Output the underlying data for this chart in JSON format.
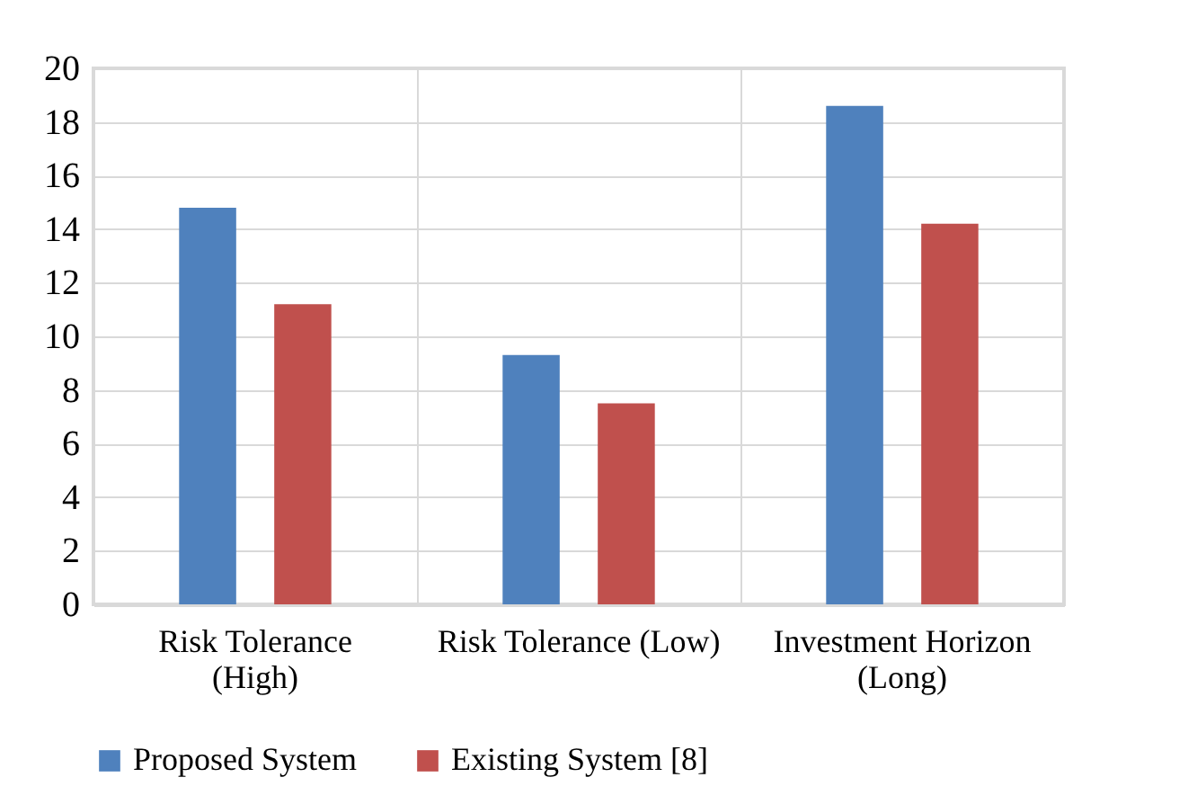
{
  "chart_data": {
    "type": "bar",
    "categories": [
      "Risk Tolerance (High)",
      "Risk Tolerance (Low)",
      "Investment Horizon (Long)"
    ],
    "series": [
      {
        "name": "Proposed System",
        "color": "#4f81bd",
        "values": [
          14.8,
          9.3,
          18.6
        ]
      },
      {
        "name": "Existing System [8]",
        "color": "#c0504d",
        "values": [
          11.2,
          7.5,
          14.2
        ]
      }
    ],
    "ylim": [
      0,
      20
    ],
    "yticks": [
      0,
      2,
      4,
      6,
      8,
      10,
      12,
      14,
      16,
      18,
      20
    ],
    "grid": true,
    "legend": "bottom"
  }
}
